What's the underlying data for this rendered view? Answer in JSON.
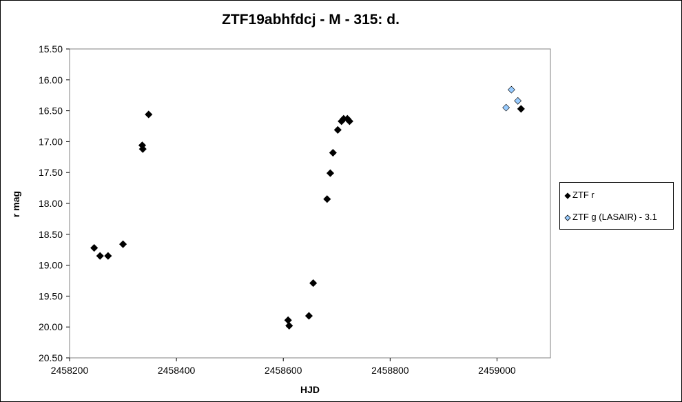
{
  "chart_data": {
    "type": "scatter",
    "title": "ZTF19abhfdcj - M - 315: d.",
    "xlabel": "HJD",
    "ylabel": "r mag",
    "xlim": [
      2458200,
      2459100
    ],
    "ylim": [
      15.5,
      20.5
    ],
    "y_inverted": true,
    "x_ticks": [
      2458200,
      2458400,
      2458600,
      2458800,
      2459000
    ],
    "y_ticks": [
      15.5,
      16.0,
      16.5,
      17.0,
      17.5,
      18.0,
      18.5,
      19.0,
      19.5,
      20.0,
      20.5
    ],
    "y_tick_labels": [
      "15.50",
      "16.00",
      "16.50",
      "17.00",
      "17.50",
      "18.00",
      "18.50",
      "19.00",
      "19.50",
      "20.00",
      "20.50"
    ],
    "legend_position": "right",
    "series": [
      {
        "name": "ZTF r",
        "color": "#000000",
        "marker": "diamond",
        "points": [
          [
            2458246,
            18.72
          ],
          [
            2458257,
            18.85
          ],
          [
            2458272,
            18.85
          ],
          [
            2458300,
            18.66
          ],
          [
            2458336,
            17.06
          ],
          [
            2458337,
            17.12
          ],
          [
            2458348,
            16.56
          ],
          [
            2458609,
            19.89
          ],
          [
            2458611,
            19.98
          ],
          [
            2458648,
            19.82
          ],
          [
            2458656,
            19.29
          ],
          [
            2458682,
            17.93
          ],
          [
            2458688,
            17.51
          ],
          [
            2458693,
            17.18
          ],
          [
            2458702,
            16.81
          ],
          [
            2458709,
            16.67
          ],
          [
            2458713,
            16.63
          ],
          [
            2458720,
            16.63
          ],
          [
            2458724,
            16.67
          ],
          [
            2459045,
            16.47
          ]
        ]
      },
      {
        "name": "ZTF g (LASAIR) - 3.1",
        "color": "#99CCFF",
        "marker": "diamond",
        "points": [
          [
            2459017,
            16.45
          ],
          [
            2459027,
            16.16
          ],
          [
            2459039,
            16.34
          ]
        ]
      }
    ]
  }
}
